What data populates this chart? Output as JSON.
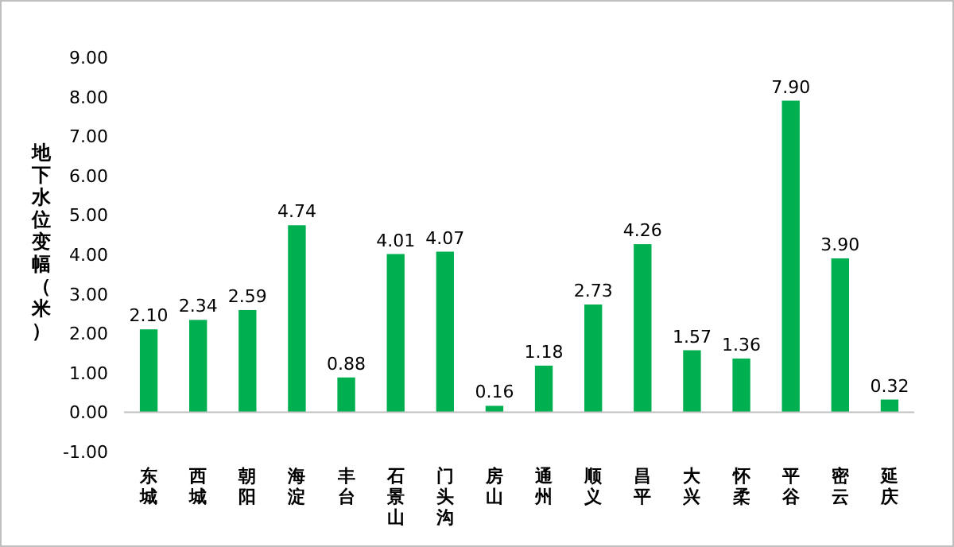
{
  "chart_data": {
    "type": "bar",
    "ylabel": "地下水位变幅（米）",
    "categories": [
      "东城",
      "西城",
      "朝阳",
      "海淀",
      "丰台",
      "石景山",
      "门头沟",
      "房山",
      "通州",
      "顺义",
      "昌平",
      "大兴",
      "怀柔",
      "平谷",
      "密云",
      "延庆"
    ],
    "values": [
      2.1,
      2.34,
      2.59,
      4.74,
      0.88,
      4.01,
      4.07,
      0.16,
      1.18,
      2.73,
      4.26,
      1.57,
      1.36,
      7.9,
      3.9,
      0.32
    ],
    "value_labels": [
      "2.10",
      "2.34",
      "2.59",
      "4.74",
      "0.88",
      "4.01",
      "4.07",
      "0.16",
      "1.18",
      "2.73",
      "4.26",
      "1.57",
      "1.36",
      "7.90",
      "3.90",
      "0.32"
    ],
    "color": "#00b050",
    "ylim": [
      -1,
      9
    ],
    "yticks": [
      {
        "value": -1,
        "label": "-1.00"
      },
      {
        "value": 0,
        "label": "0.00"
      },
      {
        "value": 1,
        "label": "1.00"
      },
      {
        "value": 2,
        "label": "2.00"
      },
      {
        "value": 3,
        "label": "3.00"
      },
      {
        "value": 4,
        "label": "4.00"
      },
      {
        "value": 5,
        "label": "5.00"
      },
      {
        "value": 6,
        "label": "6.00"
      },
      {
        "value": 7,
        "label": "7.00"
      },
      {
        "value": 8,
        "label": "8.00"
      },
      {
        "value": 9,
        "label": "9.00"
      }
    ]
  }
}
